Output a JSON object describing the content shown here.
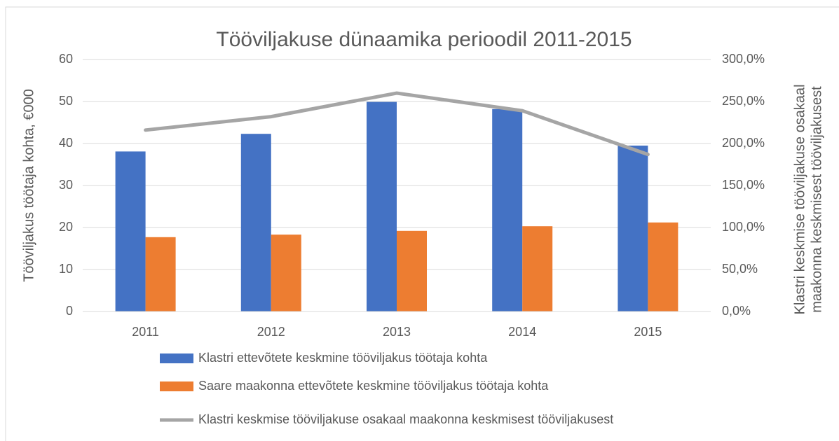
{
  "chart_data": {
    "type": "bar_line",
    "title": "Tööviljakuse dünaamika perioodil 2011-2015",
    "y_label": "Tööviljakus töötaja kohta, €000",
    "y2_label": [
      "Klastri keskmise tööviljakuse osakaal",
      "maakonna keskmisest tööviljakusest"
    ],
    "categories": [
      "2011",
      "2012",
      "2013",
      "2014",
      "2015"
    ],
    "series": [
      {
        "name": "Klastri ettevõtete keskmine tööviljakus töötaja kohta",
        "type": "bar",
        "color": "#4472c4",
        "values": [
          38.1,
          42.3,
          49.9,
          48.2,
          39.5
        ]
      },
      {
        "name": "Saare maakonna ettevõtete keskmine tööviljakus töötaja kohta",
        "type": "bar",
        "color": "#ed7d31",
        "values": [
          17.7,
          18.3,
          19.2,
          20.3,
          21.2
        ]
      },
      {
        "name": "Klastri keskmise tööviljakuse osakaal maakonna keskmisest tööviljakusest",
        "type": "line",
        "axis": "y2",
        "color": "#a5a5a5",
        "values": [
          216,
          232,
          260,
          239,
          187
        ]
      }
    ],
    "ylim": [
      0,
      60
    ],
    "yticks": [
      0,
      10,
      20,
      30,
      40,
      50,
      60
    ],
    "y2lim": [
      0,
      300
    ],
    "y2ticks": [
      {
        "value": 0,
        "label": "0,0%"
      },
      {
        "value": 50,
        "label": "50,0%"
      },
      {
        "value": 100,
        "label": "100,0%"
      },
      {
        "value": 150,
        "label": "150,0%"
      },
      {
        "value": 200,
        "label": "200,0%"
      },
      {
        "value": 250,
        "label": "250,0%"
      },
      {
        "value": 300,
        "label": "300,0%"
      }
    ],
    "legend": "bottom"
  }
}
